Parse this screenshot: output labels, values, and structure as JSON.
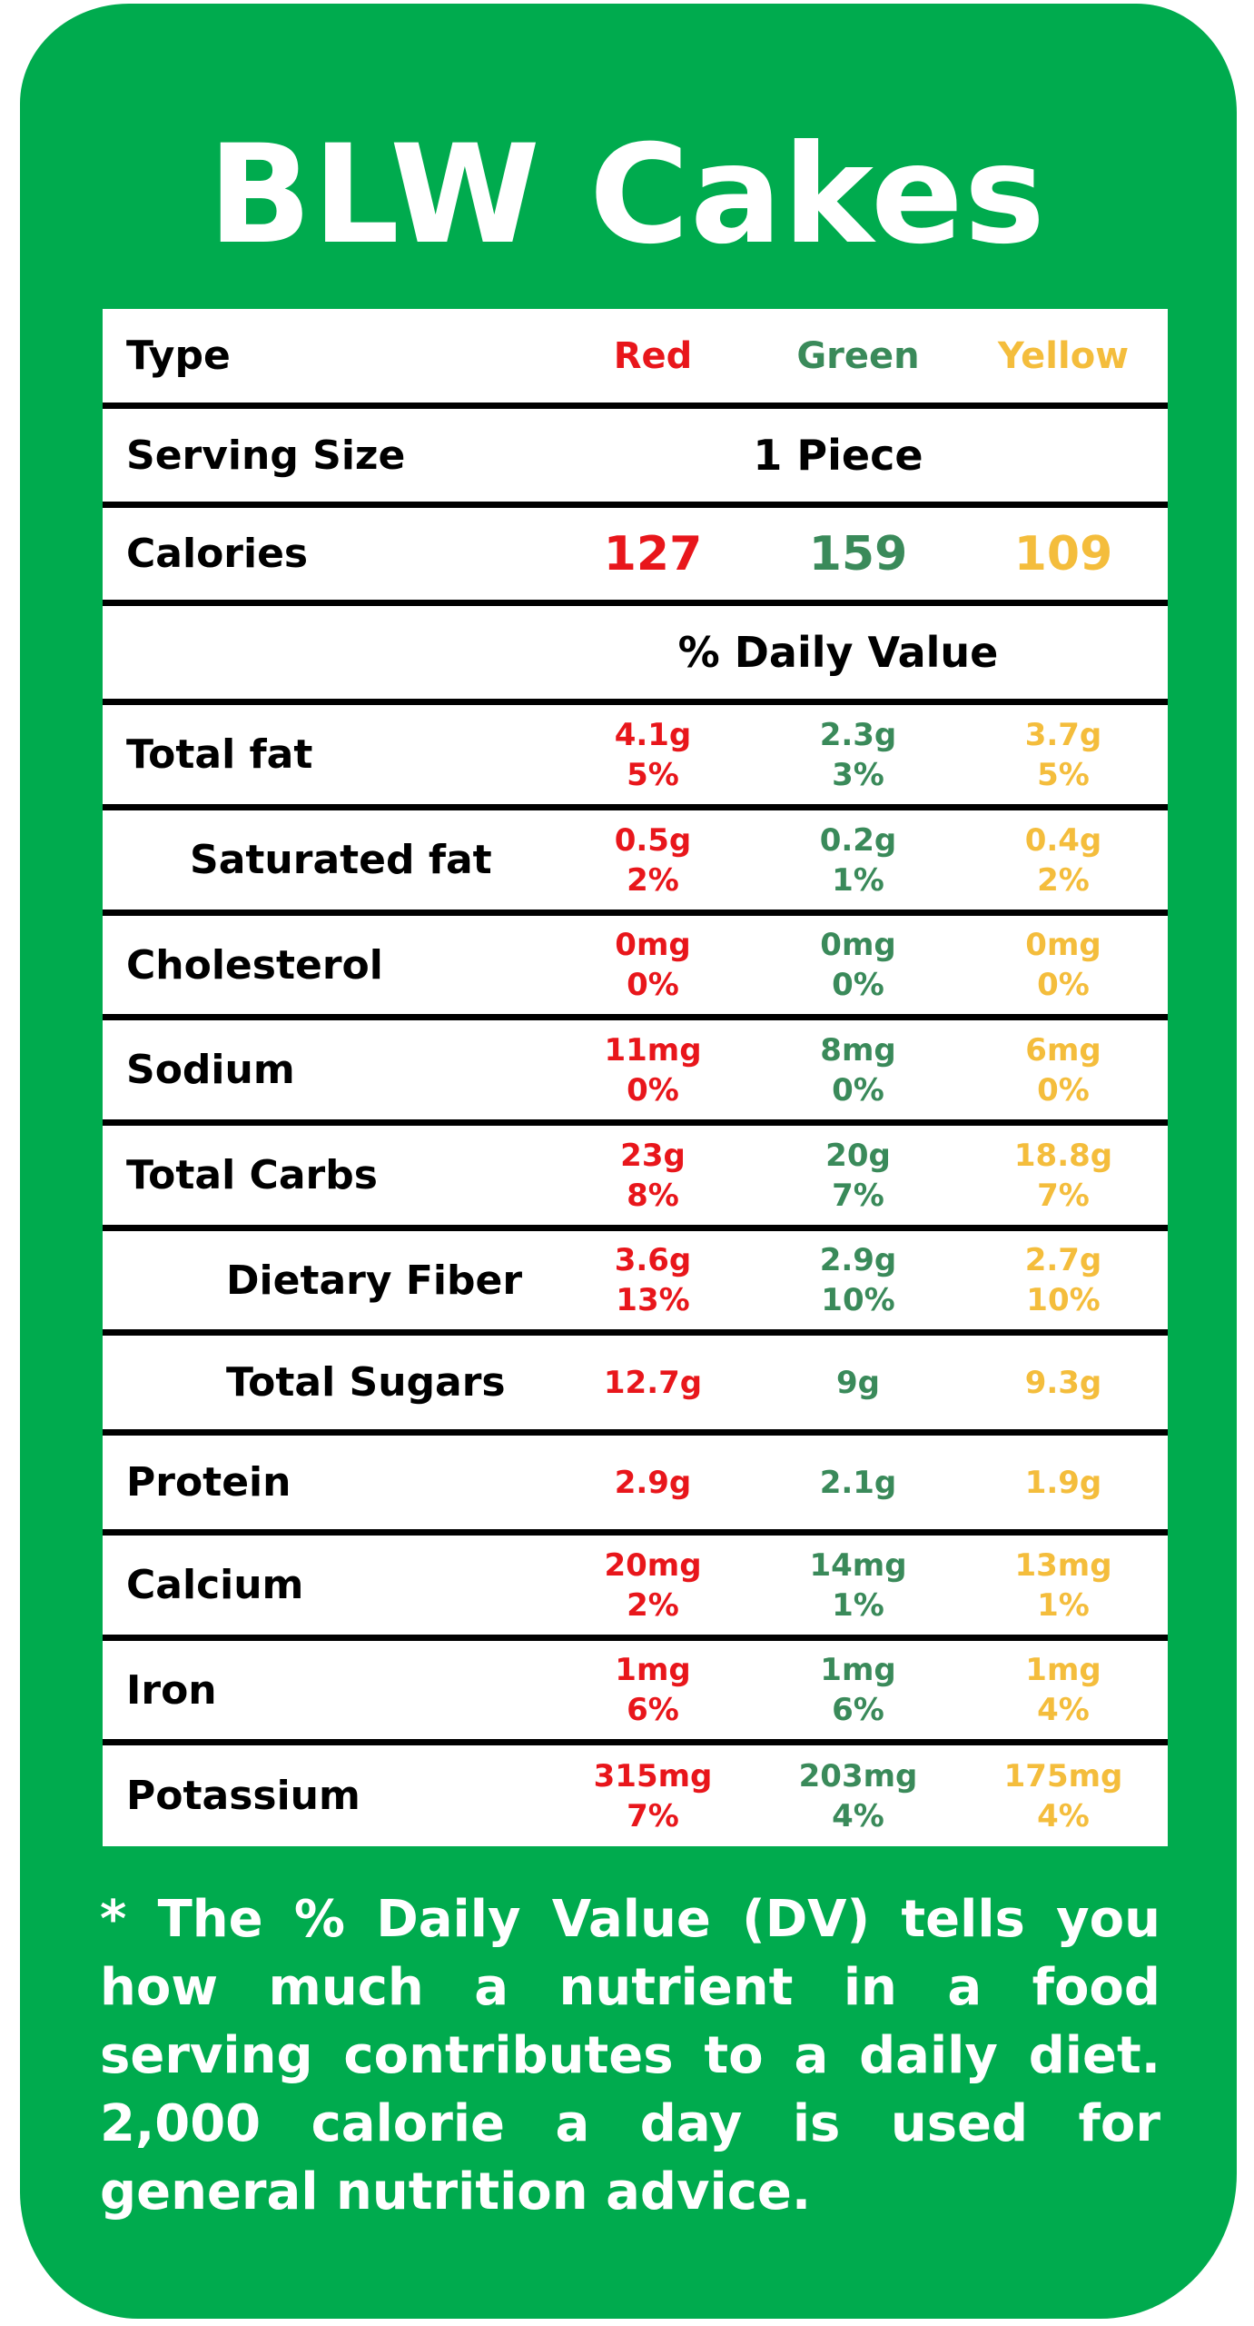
{
  "title": "BLW Cakes",
  "colors": {
    "background": "#00ab4e",
    "red": "#e8161b",
    "green": "#3a8a5a",
    "yellow": "#f4bd3c"
  },
  "table": {
    "type_label": "Type",
    "columns": [
      "Red",
      "Green",
      "Yellow"
    ],
    "serving_size": {
      "label": "Serving Size",
      "value": "1 Piece"
    },
    "calories": {
      "label": "Calories",
      "values": [
        "127",
        "159",
        "109"
      ]
    },
    "daily_value_header": "% Daily Value",
    "nutrients": [
      {
        "label": "Total fat",
        "values": [
          [
            "4.1g",
            "5%"
          ],
          [
            "2.3g",
            "3%"
          ],
          [
            "3.7g",
            "5%"
          ]
        ]
      },
      {
        "label": "Saturated fat",
        "values": [
          [
            "0.5g",
            "2%"
          ],
          [
            "0.2g",
            "1%"
          ],
          [
            "0.4g",
            "2%"
          ]
        ]
      },
      {
        "label": "Cholesterol",
        "values": [
          [
            "0mg",
            "0%"
          ],
          [
            "0mg",
            "0%"
          ],
          [
            "0mg",
            "0%"
          ]
        ]
      },
      {
        "label": "Sodium",
        "values": [
          [
            "11mg",
            "0%"
          ],
          [
            "8mg",
            "0%"
          ],
          [
            "6mg",
            "0%"
          ]
        ]
      },
      {
        "label": "Total Carbs",
        "values": [
          [
            "23g",
            "8%"
          ],
          [
            "20g",
            "7%"
          ],
          [
            "18.8g",
            "7%"
          ]
        ]
      },
      {
        "label": "Dietary Fiber",
        "values": [
          [
            "3.6g",
            "13%"
          ],
          [
            "2.9g",
            "10%"
          ],
          [
            "2.7g",
            "10%"
          ]
        ]
      },
      {
        "label": "Total Sugars",
        "values": [
          [
            "12.7g"
          ],
          [
            "9g"
          ],
          [
            "9.3g"
          ]
        ]
      },
      {
        "label": "Protein",
        "values": [
          [
            "2.9g"
          ],
          [
            "2.1g"
          ],
          [
            "1.9g"
          ]
        ]
      },
      {
        "label": "Calcium",
        "values": [
          [
            "20mg",
            "2%"
          ],
          [
            "14mg",
            "1%"
          ],
          [
            "13mg",
            "1%"
          ]
        ]
      },
      {
        "label": "Iron",
        "values": [
          [
            "1mg",
            "6%"
          ],
          [
            "1mg",
            "6%"
          ],
          [
            "1mg",
            "4%"
          ]
        ]
      },
      {
        "label": "Potassium",
        "values": [
          [
            "315mg",
            "7%"
          ],
          [
            "203mg",
            "4%"
          ],
          [
            "175mg",
            "4%"
          ]
        ]
      }
    ]
  },
  "footnote": "* The % Daily Value (DV) tells you how much a nutrient in a food serving contributes to a daily diet. 2,000 calorie a day is used for general nutrition advice."
}
